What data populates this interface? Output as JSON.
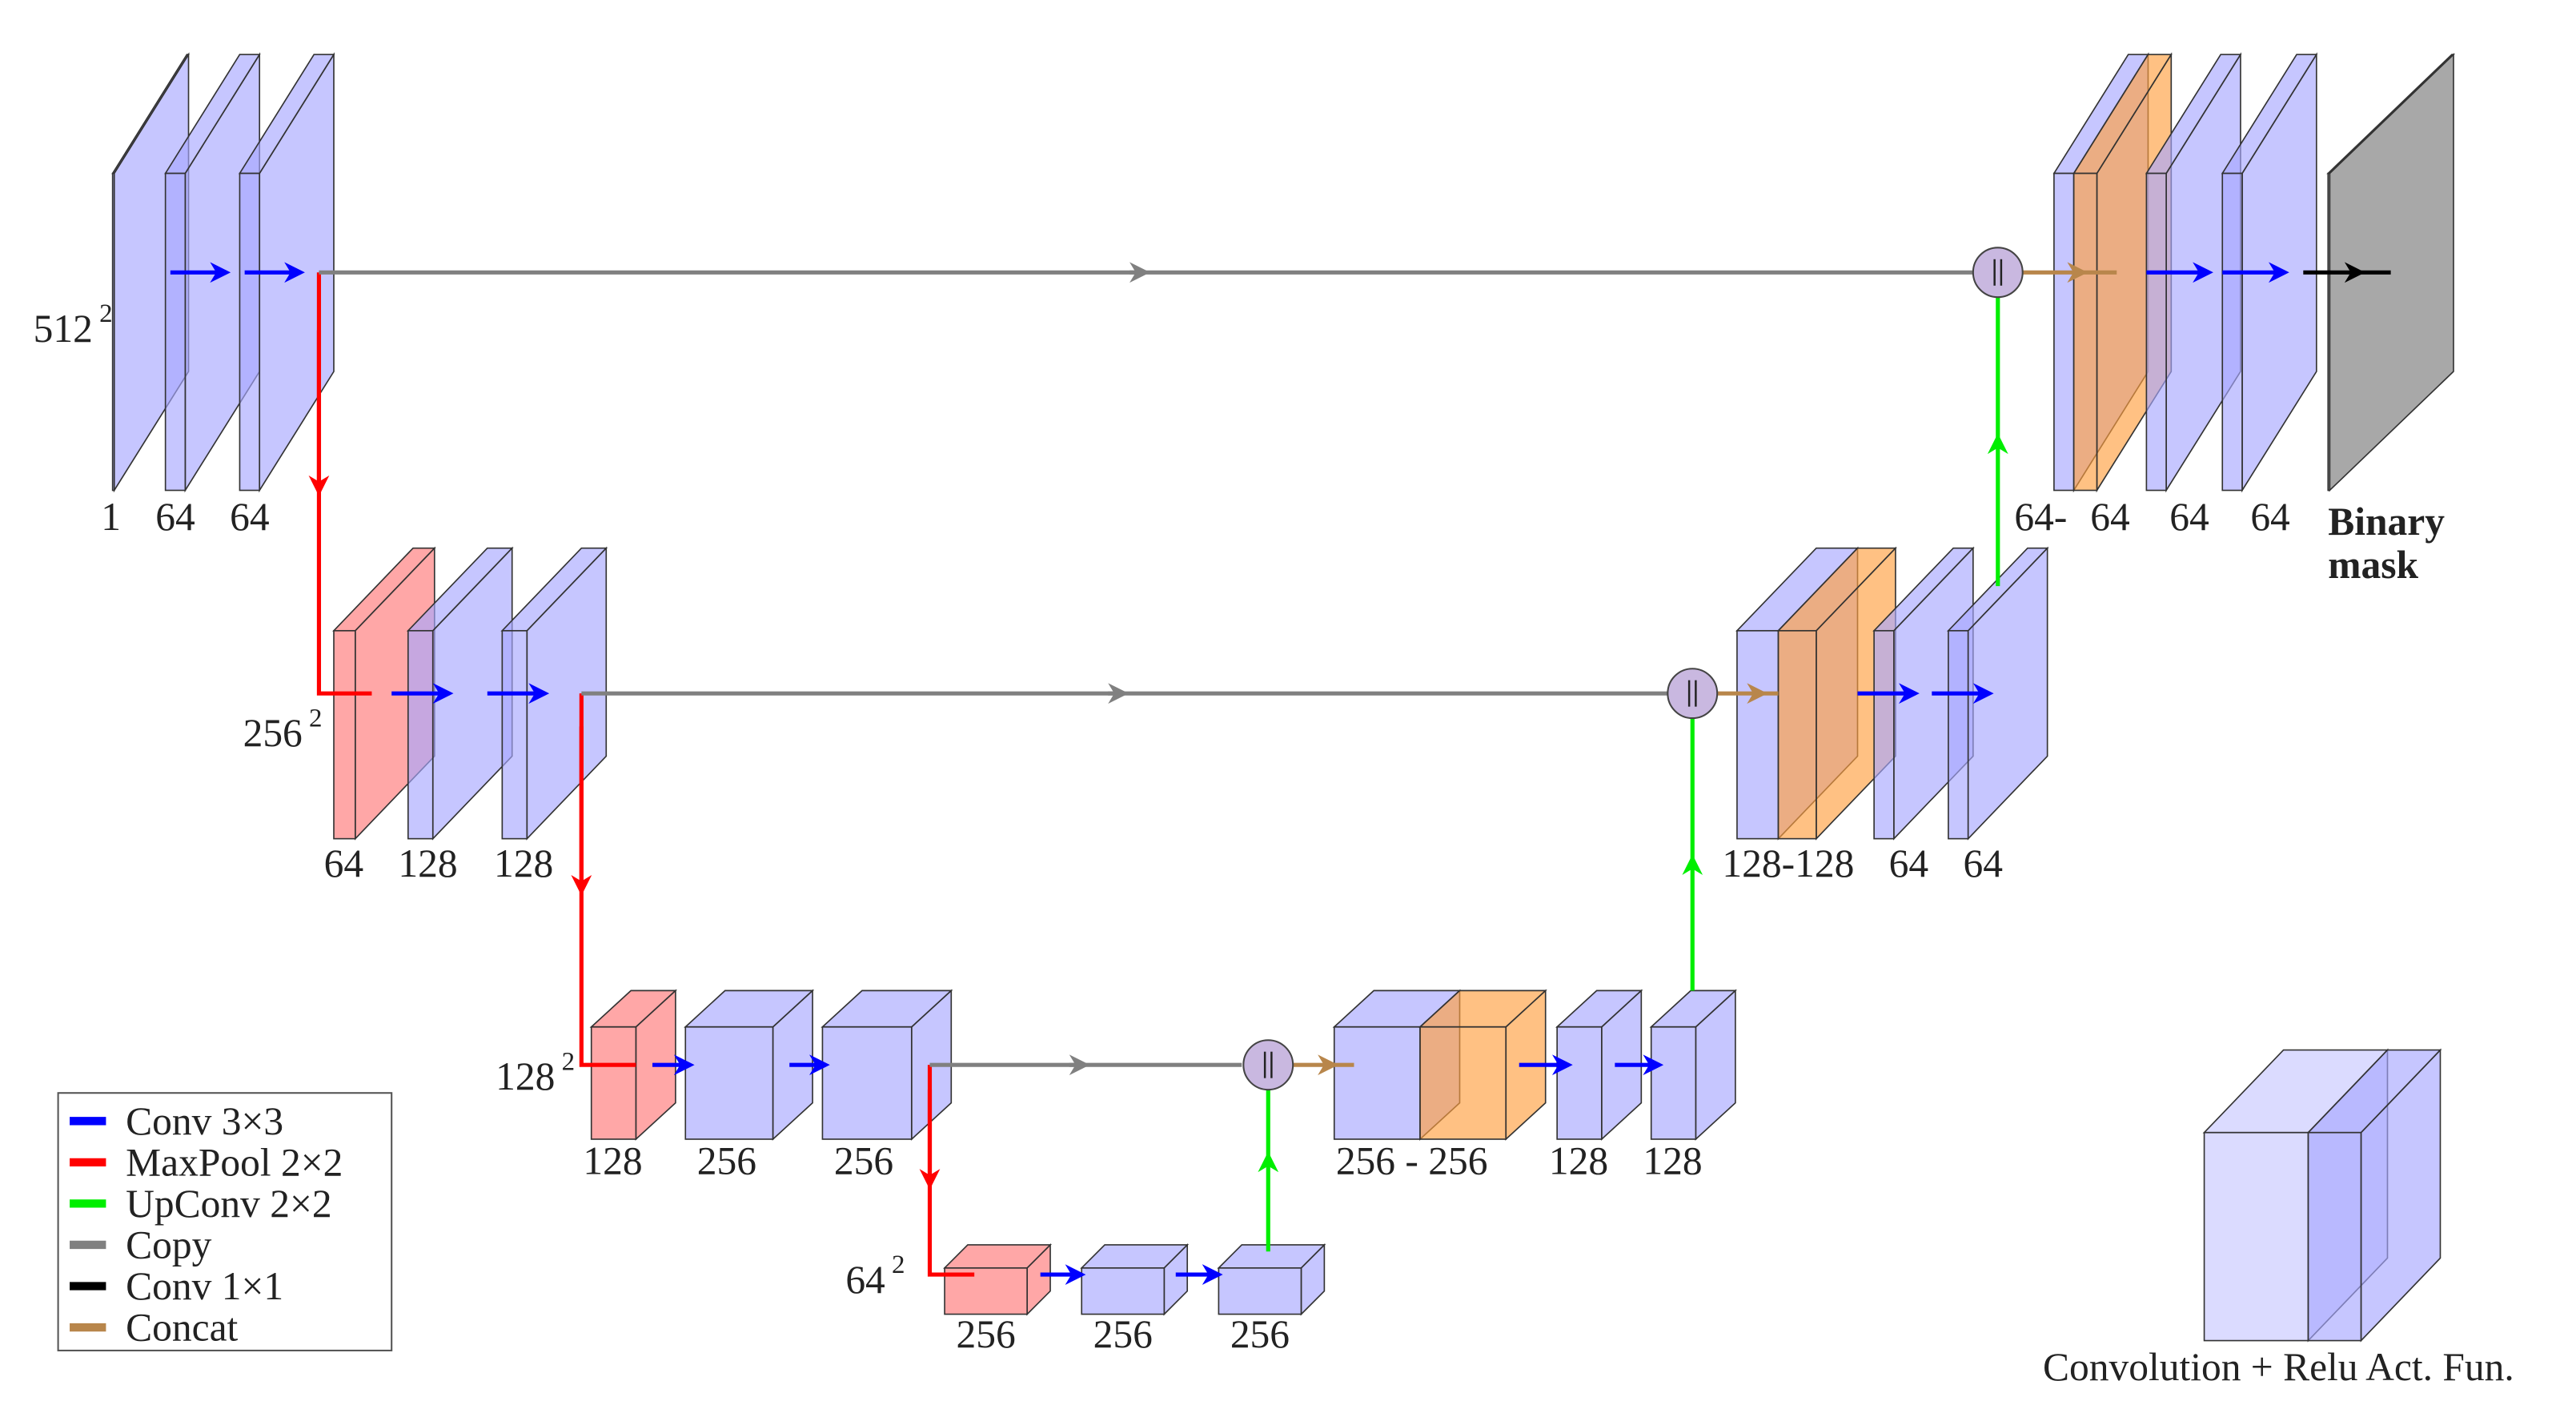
{
  "levels": [
    {
      "resolution": "512",
      "exponent": "2",
      "encoder": [
        "1",
        "64",
        "64"
      ],
      "decoder": [
        "64-",
        "64",
        "64",
        "64"
      ]
    },
    {
      "resolution": "256",
      "exponent": "2",
      "encoder": [
        "64",
        "128",
        "128"
      ],
      "decoder": [
        "128-128",
        "64",
        "64"
      ]
    },
    {
      "resolution": "128",
      "exponent": "2",
      "encoder": [
        "128",
        "256",
        "256"
      ],
      "decoder": [
        "256 - 256",
        "128",
        "128"
      ]
    },
    {
      "resolution": "64",
      "exponent": "2",
      "encoder": [
        "256",
        "256",
        "256"
      ],
      "decoder": []
    }
  ],
  "output_label": [
    "Binary",
    "mask"
  ],
  "legend": [
    {
      "label": "Conv 3×3",
      "color": "#0000ff"
    },
    {
      "label": "MaxPool 2×2",
      "color": "#ff0000"
    },
    {
      "label": "UpConv 2×2",
      "color": "#00ee00"
    },
    {
      "label": "Copy",
      "color": "#808080"
    },
    {
      "label": "Conv 1×1",
      "color": "#000000"
    },
    {
      "label": "Concat",
      "color": "#b8864b"
    }
  ],
  "caption": "Convolution + Relu Act. Fun."
}
